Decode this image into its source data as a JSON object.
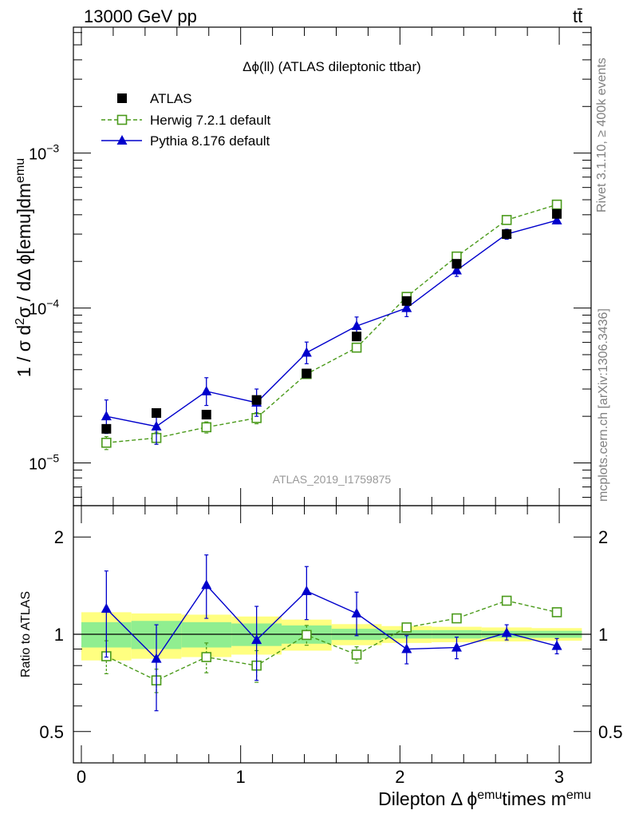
{
  "header": {
    "energy_label": "13000 GeV pp",
    "process_label": "tt̄"
  },
  "side_labels": {
    "rivet": "Rivet 3.1.10, ≥ 400k events",
    "mcplots": "mcplots.cern.ch [arXiv:1306.3436]"
  },
  "colors": {
    "atlas": "#000000",
    "herwig": "#4a9a1a",
    "pythia": "#0000cc",
    "band_inner": "#90ee90",
    "band_outer": "#ffff80",
    "side_text": "#808080"
  },
  "chart_data": [
    {
      "type": "line",
      "title": "Δϕ(ll) (ATLAS dileptonic ttbar)",
      "watermark": "ATLAS_2019_I1759875",
      "ylabel": "1 / σ  d²σ / dΔ ϕ[emu]dm^emu",
      "yscale": "log",
      "ylim": [
        5.3e-06,
        0.0065
      ],
      "xlim": [
        -0.05,
        3.2
      ],
      "y_tick_labels": [
        "10^-5",
        "10^-4",
        "10^-3"
      ],
      "legend_position": "top-left",
      "x": [
        0.157,
        0.471,
        0.785,
        1.1,
        1.414,
        1.728,
        2.042,
        2.356,
        2.67,
        2.985
      ],
      "series": [
        {
          "name": "ATLAS",
          "marker": "square-filled",
          "values": [
            1.66e-05,
            2.1e-05,
            2.05e-05,
            2.55e-05,
            3.78e-05,
            6.55e-05,
            0.000111,
            0.000193,
            0.0003,
            0.000405
          ]
        },
        {
          "name": "Herwig 7.2.1 default",
          "marker": "square-open",
          "dashed": true,
          "values": [
            1.35e-05,
            1.45e-05,
            1.7e-05,
            1.95e-05,
            3.75e-05,
            5.55e-05,
            0.000118,
            0.000215,
            0.00037,
            0.000465
          ],
          "err_low": [
            1.3e-06,
            1.3e-06,
            1.4e-06,
            1.6e-06,
            2.2e-06,
            3e-06,
            6e-06,
            1e-05,
            1.4e-05,
            1.6e-05
          ],
          "err_high": [
            1.3e-06,
            1.3e-06,
            1.4e-06,
            1.6e-06,
            2.2e-06,
            3e-06,
            6e-06,
            1e-05,
            1.4e-05,
            1.6e-05
          ]
        },
        {
          "name": "Pythia 8.176 default",
          "marker": "triangle-filled",
          "values": [
            2e-05,
            1.72e-05,
            2.9e-05,
            2.45e-05,
            5.15e-05,
            7.65e-05,
            0.0001,
            0.000175,
            0.0003,
            0.000368
          ],
          "err_low": [
            4.5e-06,
            4e-06,
            5.5e-06,
            4.5e-06,
            7.8e-06,
            9e-06,
            1.2e-05,
            1.5e-05,
            2.2e-05,
            1.8e-05
          ],
          "err_high": [
            5.5e-06,
            3.5e-06,
            6.5e-06,
            5.5e-06,
            8.8e-06,
            1.1e-05,
            1.2e-05,
            1.5e-05,
            2.2e-05,
            1.8e-05
          ]
        }
      ]
    },
    {
      "type": "line",
      "ylabel": "Ratio to ATLAS",
      "xlabel": "Dilepton Δ ϕ^emu times m^emu",
      "yscale": "log",
      "ylim": [
        0.4,
        2.5
      ],
      "xlim": [
        -0.05,
        3.2
      ],
      "x_ticks": [
        0,
        1,
        2,
        3
      ],
      "y_ticks": [
        0.5,
        1,
        2
      ],
      "bin_edges": [
        0,
        0.314,
        0.628,
        0.942,
        1.257,
        1.571,
        1.885,
        2.199,
        2.513,
        2.827,
        3.142
      ],
      "band_inner_halfwidth": [
        0.09,
        0.1,
        0.09,
        0.08,
        0.065,
        0.04,
        0.03,
        0.03,
        0.025,
        0.025
      ],
      "band_outer_halfwidth": [
        0.17,
        0.16,
        0.15,
        0.135,
        0.11,
        0.075,
        0.06,
        0.055,
        0.05,
        0.045
      ],
      "x": [
        0.157,
        0.471,
        0.785,
        1.1,
        1.414,
        1.728,
        2.042,
        2.356,
        2.67,
        2.985
      ],
      "series": [
        {
          "name": "Herwig 7.2.1 default",
          "marker": "square-open",
          "dashed": true,
          "values": [
            0.855,
            0.72,
            0.85,
            0.8,
            0.995,
            0.865,
            1.05,
            1.12,
            1.27,
            1.17
          ],
          "err_low": [
            0.1,
            0.06,
            0.09,
            0.09,
            0.07,
            0.05,
            0.03,
            0,
            0,
            0
          ],
          "err_high": [
            0.1,
            0.06,
            0.09,
            0.09,
            0.07,
            0.05,
            0.03,
            0,
            0,
            0
          ]
        },
        {
          "name": "Pythia 8.176 default",
          "marker": "triangle-filled",
          "values": [
            1.2,
            0.84,
            1.42,
            0.96,
            1.36,
            1.16,
            0.9,
            0.91,
            1.01,
            0.92
          ],
          "err_low": [
            0.35,
            0.26,
            0.3,
            0.24,
            0.25,
            0.17,
            0.09,
            0.07,
            0.05,
            0.05
          ],
          "err_high": [
            0.37,
            0.23,
            0.34,
            0.26,
            0.26,
            0.19,
            0.09,
            0.07,
            0.06,
            0.05
          ]
        }
      ]
    }
  ]
}
